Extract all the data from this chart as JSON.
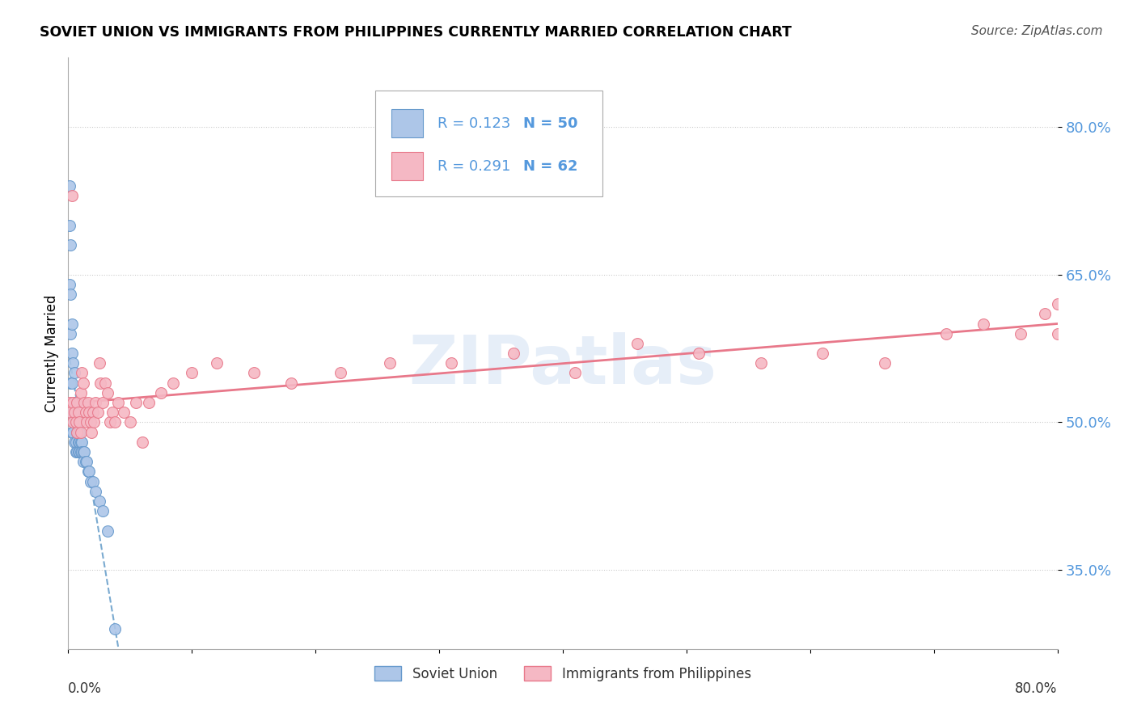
{
  "title": "SOVIET UNION VS IMMIGRANTS FROM PHILIPPINES CURRENTLY MARRIED CORRELATION CHART",
  "source": "Source: ZipAtlas.com",
  "ylabel": "Currently Married",
  "watermark": "ZIPatlas",
  "legend_r1": "R = 0.123",
  "legend_n1": "N = 50",
  "legend_r2": "R = 0.291",
  "legend_n2": "N = 62",
  "blue_scatter_color": "#adc6e8",
  "blue_edge_color": "#6699cc",
  "pink_scatter_color": "#f5b8c4",
  "pink_edge_color": "#e8788a",
  "blue_line_color": "#7aaad0",
  "pink_line_color": "#e8788a",
  "ytick_color": "#5599dd",
  "xlim": [
    0.0,
    0.8
  ],
  "ylim": [
    0.27,
    0.87
  ],
  "yticks": [
    0.35,
    0.5,
    0.65,
    0.8
  ],
  "ytick_labels": [
    "35.0%",
    "50.0%",
    "65.0%",
    "80.0%"
  ],
  "soviet_x": [
    0.001,
    0.001,
    0.001,
    0.002,
    0.002,
    0.002,
    0.002,
    0.003,
    0.003,
    0.003,
    0.003,
    0.003,
    0.004,
    0.004,
    0.004,
    0.005,
    0.005,
    0.005,
    0.005,
    0.006,
    0.006,
    0.006,
    0.006,
    0.007,
    0.007,
    0.007,
    0.008,
    0.008,
    0.008,
    0.009,
    0.009,
    0.009,
    0.01,
    0.01,
    0.011,
    0.011,
    0.012,
    0.012,
    0.013,
    0.014,
    0.015,
    0.016,
    0.017,
    0.018,
    0.02,
    0.022,
    0.025,
    0.028,
    0.032,
    0.038
  ],
  "soviet_y": [
    0.74,
    0.7,
    0.64,
    0.68,
    0.63,
    0.59,
    0.54,
    0.6,
    0.57,
    0.54,
    0.51,
    0.49,
    0.56,
    0.52,
    0.49,
    0.55,
    0.52,
    0.5,
    0.48,
    0.52,
    0.5,
    0.48,
    0.47,
    0.5,
    0.49,
    0.47,
    0.49,
    0.48,
    0.47,
    0.49,
    0.48,
    0.47,
    0.48,
    0.47,
    0.48,
    0.47,
    0.47,
    0.46,
    0.47,
    0.46,
    0.46,
    0.45,
    0.45,
    0.44,
    0.44,
    0.43,
    0.42,
    0.41,
    0.39,
    0.29
  ],
  "phil_x": [
    0.001,
    0.002,
    0.003,
    0.004,
    0.004,
    0.005,
    0.006,
    0.007,
    0.007,
    0.008,
    0.009,
    0.01,
    0.01,
    0.011,
    0.012,
    0.013,
    0.014,
    0.015,
    0.016,
    0.017,
    0.018,
    0.019,
    0.02,
    0.021,
    0.022,
    0.024,
    0.025,
    0.026,
    0.028,
    0.03,
    0.032,
    0.034,
    0.036,
    0.038,
    0.04,
    0.045,
    0.05,
    0.055,
    0.06,
    0.065,
    0.075,
    0.085,
    0.1,
    0.12,
    0.15,
    0.18,
    0.22,
    0.26,
    0.31,
    0.36,
    0.41,
    0.46,
    0.51,
    0.56,
    0.61,
    0.66,
    0.71,
    0.74,
    0.77,
    0.79,
    0.8,
    0.8
  ],
  "phil_y": [
    0.52,
    0.51,
    0.73,
    0.52,
    0.5,
    0.51,
    0.5,
    0.52,
    0.49,
    0.51,
    0.5,
    0.49,
    0.53,
    0.55,
    0.54,
    0.52,
    0.51,
    0.5,
    0.52,
    0.51,
    0.5,
    0.49,
    0.51,
    0.5,
    0.52,
    0.51,
    0.56,
    0.54,
    0.52,
    0.54,
    0.53,
    0.5,
    0.51,
    0.5,
    0.52,
    0.51,
    0.5,
    0.52,
    0.48,
    0.52,
    0.53,
    0.54,
    0.55,
    0.56,
    0.55,
    0.54,
    0.55,
    0.56,
    0.56,
    0.57,
    0.55,
    0.58,
    0.57,
    0.56,
    0.57,
    0.56,
    0.59,
    0.6,
    0.59,
    0.61,
    0.62,
    0.59
  ]
}
